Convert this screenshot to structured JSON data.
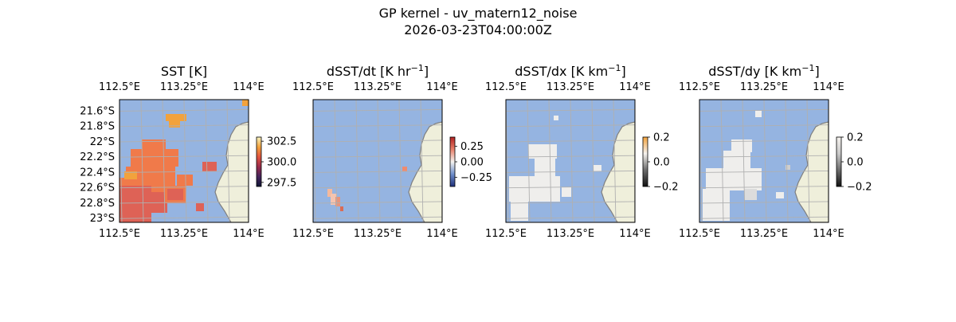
{
  "figure": {
    "title": "GP kernel - uv_matern12_noise",
    "subtitle": "2026-03-23T04:00:00Z"
  },
  "colors": {
    "ocean": "#95b4e1",
    "land": "#efefdb",
    "coast": "#7f7f7f",
    "grid": "#b0b0b0",
    "sst_warm": "#f07a4a",
    "sst_hot": "#f2a23c",
    "sst_red": "#de6256",
    "white_patch": "#efeeec"
  },
  "chart_data": [
    {
      "type": "heatmap",
      "title": "SST [K]",
      "title_unit_sup": "",
      "title_tail": "",
      "x_ticks": [
        "112.5°E",
        "113.25°E",
        "114°E"
      ],
      "x_tick_values": [
        112.5,
        113.25,
        114.0
      ],
      "y_ticks": [
        "21.6°S",
        "21.8°S",
        "22°S",
        "22.2°S",
        "22.4°S",
        "22.6°S",
        "22.8°S",
        "23°S"
      ],
      "y_tick_values": [
        -21.6,
        -21.8,
        -22.0,
        -22.2,
        -22.4,
        -22.6,
        -22.8,
        -23.0
      ],
      "lon_range": [
        112.5,
        114.0
      ],
      "lat_range": [
        -23.05,
        -21.45
      ],
      "colorbar": {
        "ticks": [
          "302.5",
          "300.0",
          "297.5"
        ],
        "values": [
          302.5,
          300.0,
          297.5
        ],
        "range": [
          297.0,
          303.0
        ],
        "colormap": [
          "#f6f3c0",
          "#f2a23c",
          "#e2533f",
          "#9a2b4b",
          "#45245c",
          "#0f1535"
        ]
      },
      "grid": true
    },
    {
      "type": "heatmap",
      "title": "dSST/dt [K hr",
      "title_unit_sup": "−1",
      "title_tail": "]",
      "x_ticks": [
        "112.5°E",
        "113.25°E",
        "114°E"
      ],
      "x_tick_values": [
        112.5,
        113.25,
        114.0
      ],
      "y_ticks": [],
      "lon_range": [
        112.5,
        114.0
      ],
      "lat_range": [
        -23.05,
        -21.45
      ],
      "colorbar": {
        "ticks": [
          "0.25",
          "0.00",
          "−0.25"
        ],
        "values": [
          0.25,
          0.0,
          -0.25
        ],
        "range": [
          -0.4,
          0.4
        ],
        "colormap": [
          "#b22222",
          "#e8806a",
          "#f5f3ef",
          "#6f8fcc",
          "#1e2f7a"
        ]
      },
      "grid": true
    },
    {
      "type": "heatmap",
      "title": "dSST/dx [K km",
      "title_unit_sup": "−1",
      "title_tail": "]",
      "x_ticks": [
        "112.5°E",
        "113.25°E",
        "114°E"
      ],
      "x_tick_values": [
        112.5,
        113.25,
        114.0
      ],
      "y_ticks": [],
      "lon_range": [
        112.5,
        114.0
      ],
      "lat_range": [
        -23.05,
        -21.45
      ],
      "colorbar": {
        "ticks": [
          "0.2",
          "0.0",
          "−0.2"
        ],
        "values": [
          0.2,
          0.0,
          -0.2
        ],
        "range": [
          -0.2,
          0.2
        ],
        "colormap": [
          "#f2a23c",
          "#f5f2ee",
          "#6d6d6d",
          "#111111"
        ]
      },
      "grid": true
    },
    {
      "type": "heatmap",
      "title": "dSST/dy [K km",
      "title_unit_sup": "−1",
      "title_tail": "]",
      "x_ticks": [
        "112.5°E",
        "113.25°E",
        "114°E"
      ],
      "x_tick_values": [
        112.5,
        113.25,
        114.0
      ],
      "y_ticks": [],
      "lon_range": [
        112.5,
        114.0
      ],
      "lat_range": [
        -23.05,
        -21.45
      ],
      "colorbar": {
        "ticks": [
          "0.2",
          "0.0",
          "−0.2"
        ],
        "values": [
          0.2,
          0.0,
          -0.2
        ],
        "range": [
          -0.2,
          0.2
        ],
        "colormap": [
          "#f5f2ee",
          "#c9c9c9",
          "#6d6d6d",
          "#111111"
        ]
      },
      "grid": true
    }
  ]
}
